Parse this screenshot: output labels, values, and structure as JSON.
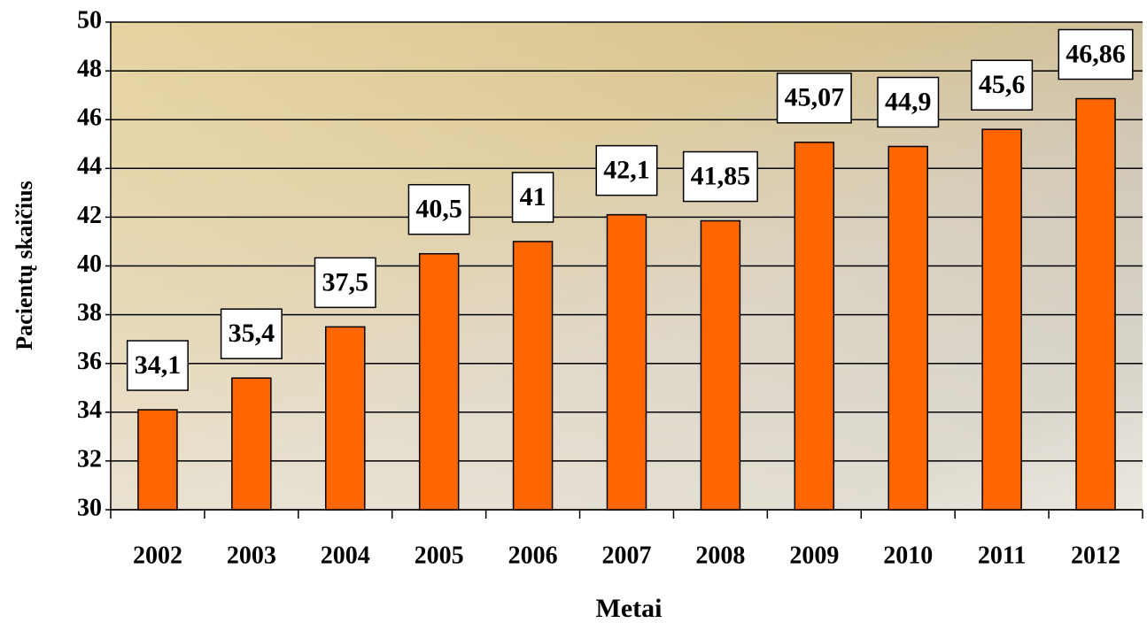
{
  "chart_data": {
    "type": "bar",
    "categories": [
      "2002",
      "2003",
      "2004",
      "2005",
      "2006",
      "2007",
      "2008",
      "2009",
      "2010",
      "2011",
      "2012"
    ],
    "values": [
      34.1,
      35.4,
      37.5,
      40.5,
      41,
      42.1,
      41.85,
      45.07,
      44.9,
      45.6,
      46.86
    ],
    "value_labels": [
      "34,1",
      "35,4",
      "37,5",
      "40,5",
      "41",
      "42,1",
      "41,85",
      "45,07",
      "44,9",
      "45,6",
      "46,86"
    ],
    "color": "#ff6600",
    "ylim": [
      30,
      50
    ],
    "yticks": [
      30,
      32,
      34,
      36,
      38,
      40,
      42,
      44,
      46,
      48,
      50
    ],
    "grid": true,
    "x_label": "Metai",
    "y_label": "Pacientų skaičius"
  }
}
